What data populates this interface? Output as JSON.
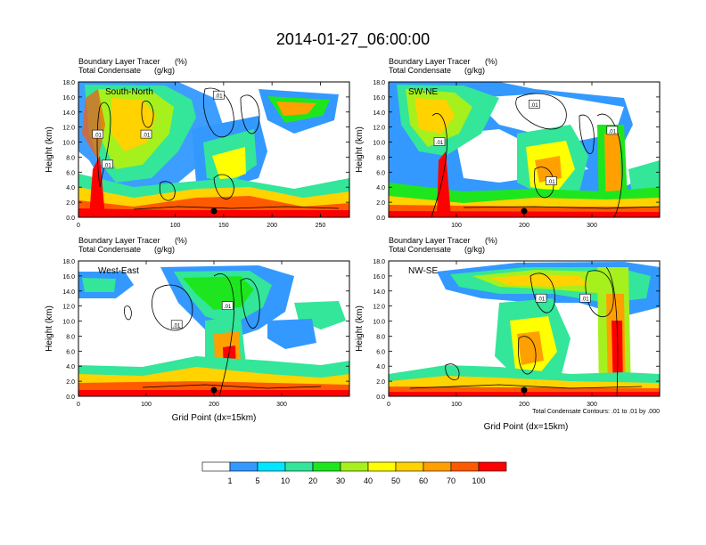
{
  "chart_data": {
    "type": "heatmap",
    "title": "2014-01-27_06:00:00",
    "panels": [
      {
        "name": "South-North",
        "subtitle_line1": "Boundary Layer Tracer",
        "subtitle_units1": "(%)",
        "subtitle_line2": "Total Condensate",
        "subtitle_units2": "(g/kg)",
        "ylabel": "Height (km)",
        "xlabel": "",
        "x_range": [
          0,
          280
        ],
        "y_range": [
          0,
          18
        ],
        "x_ticks": [
          0,
          100,
          150,
          200,
          250
        ],
        "x_tick_labels": [
          "0",
          "100",
          "150",
          "200",
          "250"
        ],
        "marker_x": 140,
        "contour_labels": [
          {
            "text": ".01",
            "x": 145,
            "y": 16.2
          },
          {
            "text": ".01",
            "x": 20,
            "y": 11.0
          },
          {
            "text": ".01",
            "x": 70,
            "y": 11.0
          },
          {
            "text": ".01",
            "x": 30,
            "y": 7.0
          }
        ]
      },
      {
        "name": "SW-NE",
        "subtitle_line1": "Boundary Layer Tracer",
        "subtitle_units1": "(%)",
        "subtitle_line2": "Total Condensate",
        "subtitle_units2": "(g/kg)",
        "ylabel": "Height (km)",
        "xlabel": "",
        "x_range": [
          0,
          400
        ],
        "y_range": [
          0,
          18
        ],
        "x_ticks": [
          100,
          200,
          300
        ],
        "x_tick_labels": [
          "100",
          "200",
          "300"
        ],
        "marker_x": 200,
        "contour_labels": [
          {
            "text": ".01",
            "x": 215,
            "y": 15.0
          },
          {
            "text": ".01",
            "x": 75,
            "y": 10.0
          },
          {
            "text": ".01",
            "x": 240,
            "y": 4.8
          },
          {
            "text": ".01",
            "x": 330,
            "y": 11.5
          }
        ]
      },
      {
        "name": "West-East",
        "subtitle_line1": "Boundary Layer Tracer",
        "subtitle_units1": "(%)",
        "subtitle_line2": "Total Condensate",
        "subtitle_units2": "(g/kg)",
        "ylabel": "Height (km)",
        "xlabel": "Grid Point (dx=15km)",
        "x_range": [
          0,
          400
        ],
        "y_range": [
          0,
          18
        ],
        "x_ticks": [
          0,
          100,
          200,
          300
        ],
        "x_tick_labels": [
          "0",
          "100",
          "200",
          "300"
        ],
        "marker_x": 200,
        "contour_labels": [
          {
            "text": ".01",
            "x": 220,
            "y": 12.0
          },
          {
            "text": ".01",
            "x": 145,
            "y": 9.5
          }
        ]
      },
      {
        "name": "NW-SE",
        "subtitle_line1": "Boundary Layer Tracer",
        "subtitle_units1": "(%)",
        "subtitle_line2": "Total Condensate",
        "subtitle_units2": "(g/kg)",
        "ylabel": "Height (km)",
        "xlabel": "Grid Point (dx=15km)",
        "x_range": [
          0,
          400
        ],
        "y_range": [
          0,
          18
        ],
        "x_ticks": [
          0,
          100,
          200,
          300
        ],
        "x_tick_labels": [
          "0",
          "100",
          "200",
          "300"
        ],
        "marker_x": 200,
        "contour_labels": [
          {
            "text": ".01",
            "x": 225,
            "y": 13.0
          },
          {
            "text": ".01",
            "x": 290,
            "y": 13.0
          }
        ],
        "footnote": "Total Condensate Contours: .01 to .01 by .000"
      }
    ],
    "y_ticks": [
      0,
      2,
      4,
      6,
      8,
      10,
      12,
      14,
      16,
      18
    ],
    "y_tick_labels": [
      "0.0",
      "2.0",
      "4.0",
      "6.0",
      "8.0",
      "10.0",
      "12.0",
      "14.0",
      "16.0",
      "18.0"
    ],
    "legend": {
      "labels": [
        "1",
        "5",
        "10",
        "20",
        "30",
        "40",
        "50",
        "60",
        "70",
        "100"
      ],
      "colors": [
        "#ffffff",
        "#3399ff",
        "#00e6ff",
        "#33e699",
        "#1ee61e",
        "#a6f01e",
        "#ffff00",
        "#ffd200",
        "#ffa000",
        "#ff5a00",
        "#ff0000"
      ]
    }
  }
}
